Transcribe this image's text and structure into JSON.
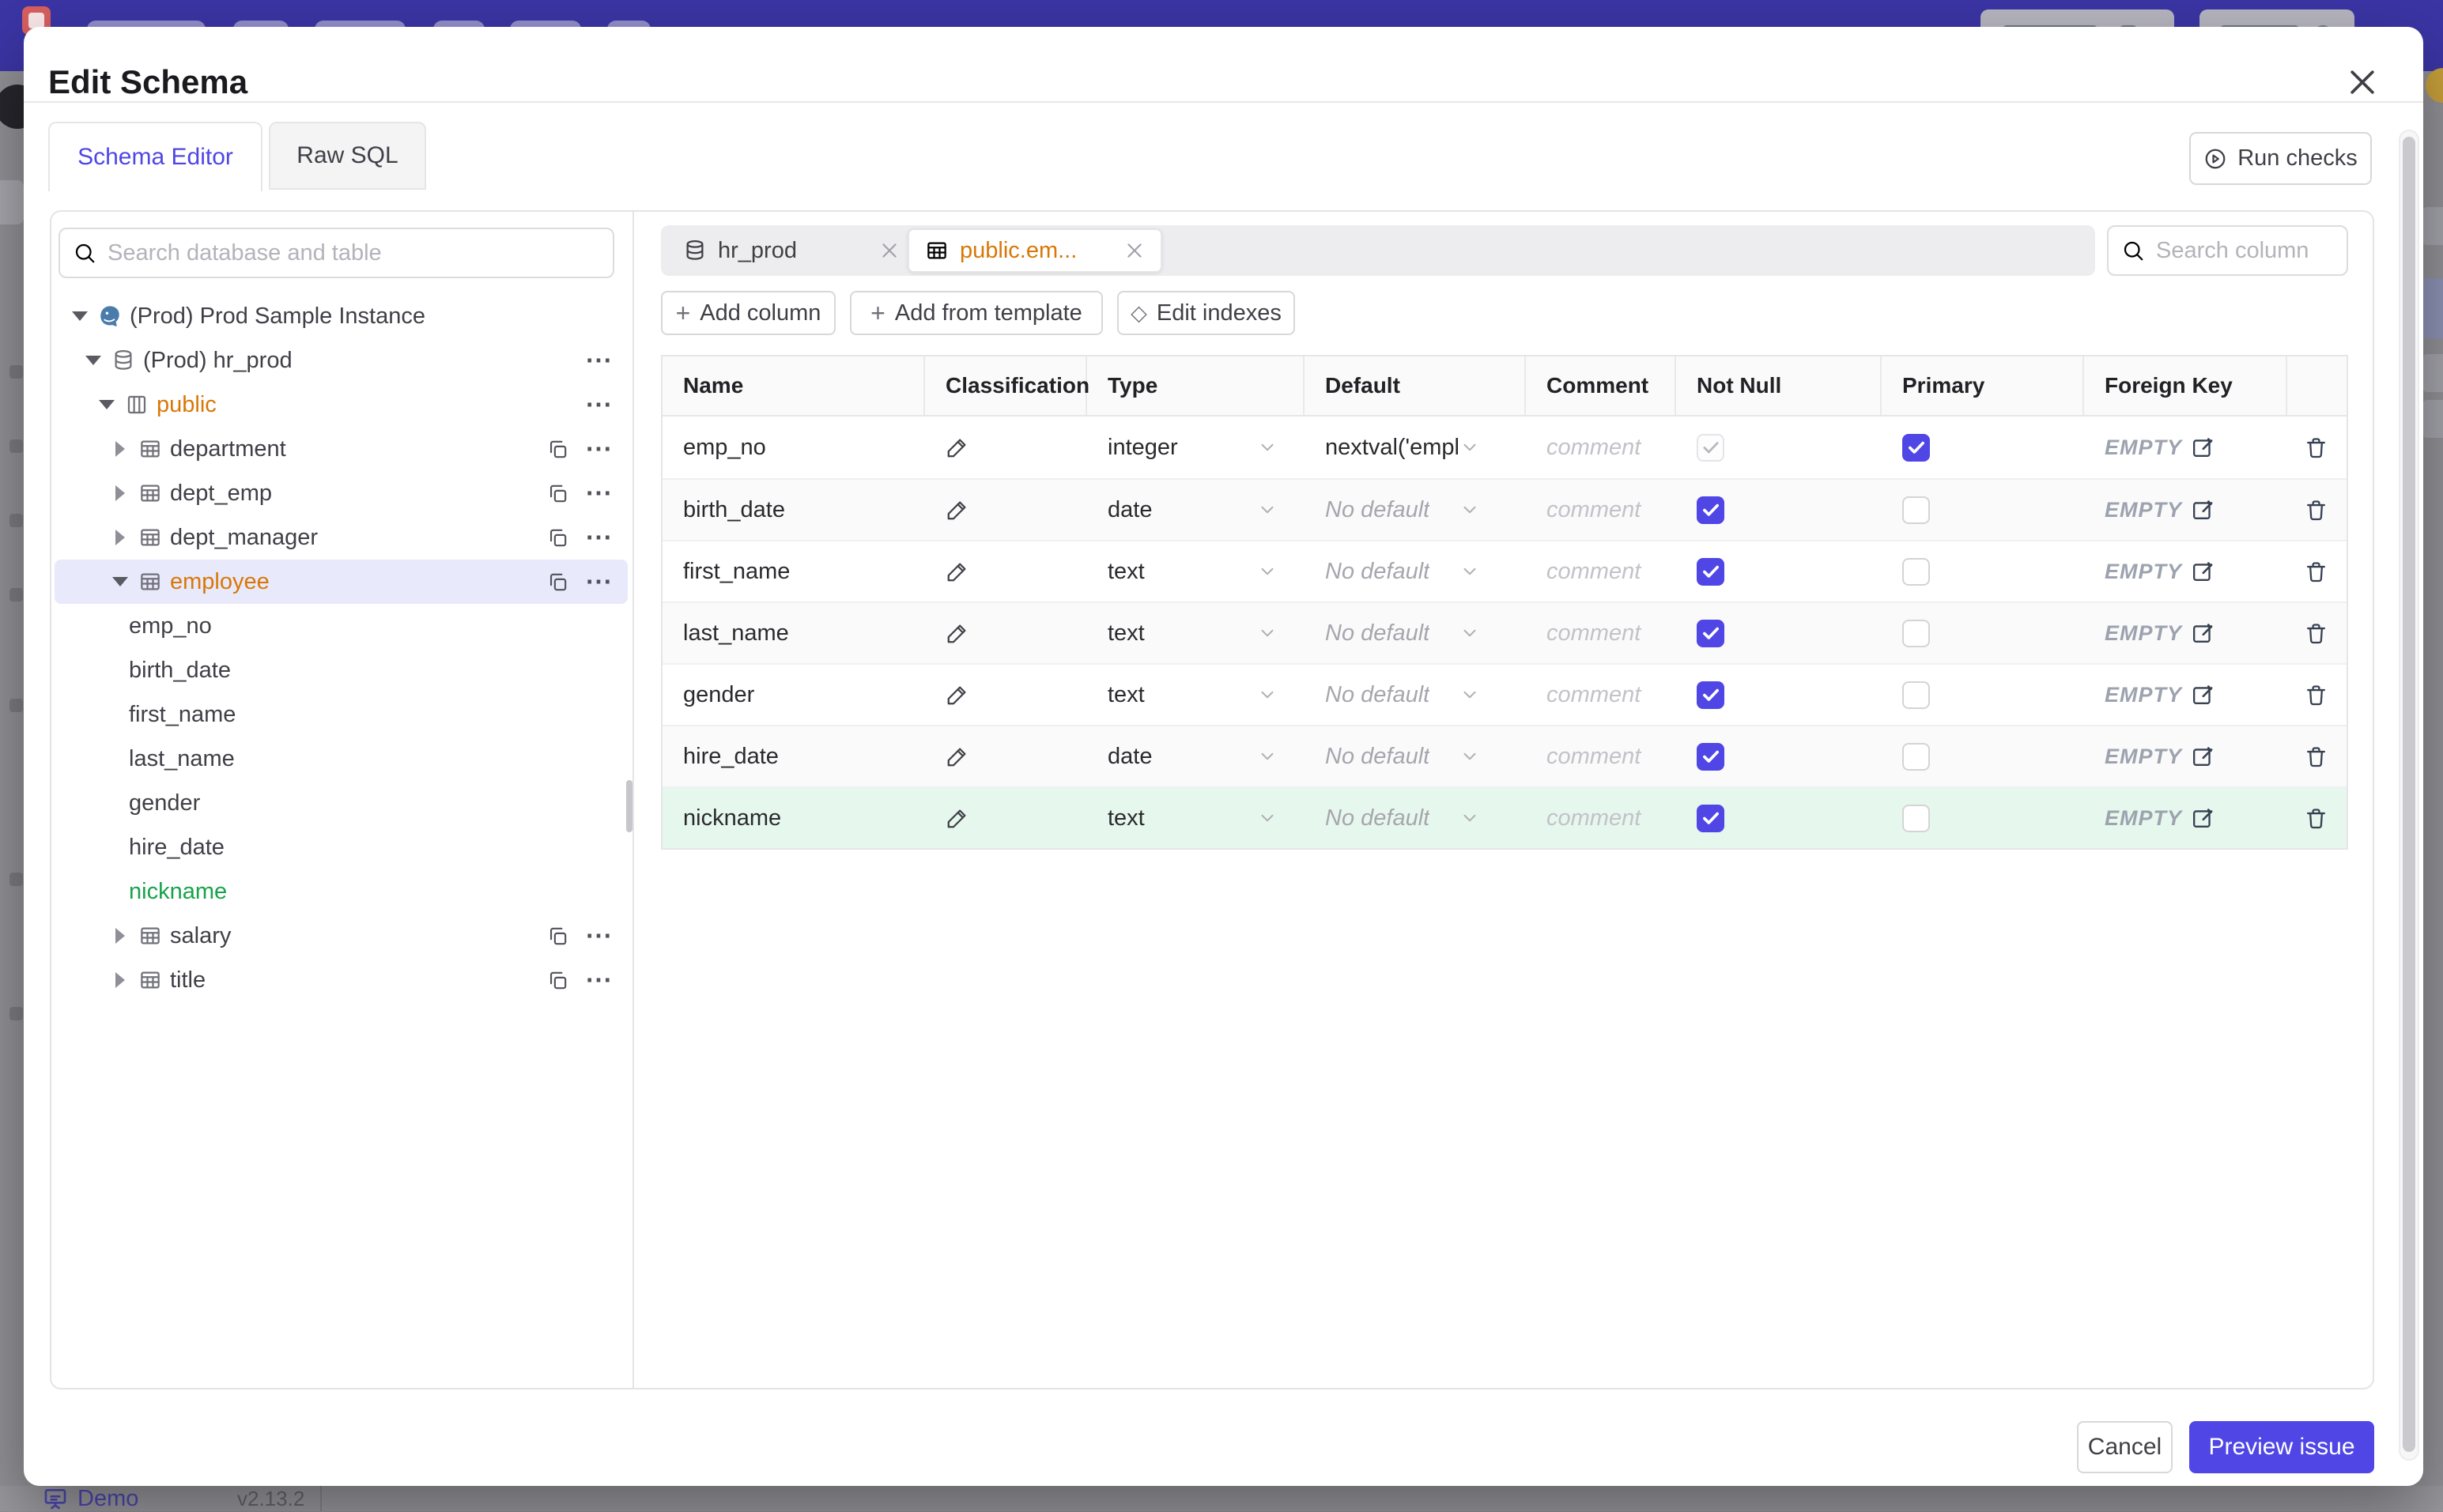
{
  "backdrop": {
    "bottom_bar": {
      "demo_label": "Demo",
      "version": "v2.13.2"
    }
  },
  "modal": {
    "title": "Edit Schema",
    "header_tabs": [
      {
        "label": "Schema Editor",
        "active": true
      },
      {
        "label": "Raw SQL",
        "active": false
      }
    ],
    "run_checks_label": "Run checks",
    "sidebar": {
      "search_placeholder": "Search database and table",
      "tree": [
        {
          "level": 0,
          "expand": "down",
          "icon": "postgres",
          "label": "(Prod) Prod Sample Instance",
          "color": "",
          "selected": false,
          "actions": []
        },
        {
          "level": 1,
          "expand": "down",
          "icon": "database",
          "label": "(Prod) hr_prod",
          "color": "",
          "selected": false,
          "actions": [
            "more"
          ]
        },
        {
          "level": 2,
          "expand": "down",
          "icon": "schema",
          "label": "public",
          "color": "amber",
          "selected": false,
          "actions": [
            "more"
          ]
        },
        {
          "level": 3,
          "expand": "right",
          "icon": "table",
          "label": "department",
          "color": "",
          "selected": false,
          "actions": [
            "copy",
            "more"
          ]
        },
        {
          "level": 3,
          "expand": "right",
          "icon": "table",
          "label": "dept_emp",
          "color": "",
          "selected": false,
          "actions": [
            "copy",
            "more"
          ]
        },
        {
          "level": 3,
          "expand": "right",
          "icon": "table",
          "label": "dept_manager",
          "color": "",
          "selected": false,
          "actions": [
            "copy",
            "more"
          ]
        },
        {
          "level": 3,
          "expand": "down",
          "icon": "table",
          "label": "employee",
          "color": "amber",
          "selected": true,
          "actions": [
            "copy",
            "more"
          ]
        },
        {
          "level": 4,
          "expand": "",
          "icon": "",
          "label": "emp_no",
          "color": "",
          "selected": false,
          "actions": []
        },
        {
          "level": 4,
          "expand": "",
          "icon": "",
          "label": "birth_date",
          "color": "",
          "selected": false,
          "actions": []
        },
        {
          "level": 4,
          "expand": "",
          "icon": "",
          "label": "first_name",
          "color": "",
          "selected": false,
          "actions": []
        },
        {
          "level": 4,
          "expand": "",
          "icon": "",
          "label": "last_name",
          "color": "",
          "selected": false,
          "actions": []
        },
        {
          "level": 4,
          "expand": "",
          "icon": "",
          "label": "gender",
          "color": "",
          "selected": false,
          "actions": []
        },
        {
          "level": 4,
          "expand": "",
          "icon": "",
          "label": "hire_date",
          "color": "",
          "selected": false,
          "actions": []
        },
        {
          "level": 4,
          "expand": "",
          "icon": "",
          "label": "nickname",
          "color": "green",
          "selected": false,
          "actions": []
        },
        {
          "level": 3,
          "expand": "right",
          "icon": "table",
          "label": "salary",
          "color": "",
          "selected": false,
          "actions": [
            "copy",
            "more"
          ]
        },
        {
          "level": 3,
          "expand": "right",
          "icon": "table",
          "label": "title",
          "color": "",
          "selected": false,
          "actions": [
            "copy",
            "more"
          ]
        }
      ]
    },
    "editor": {
      "tabs": [
        {
          "label": "hr_prod",
          "icon": "database",
          "active": false
        },
        {
          "label": "public.em...",
          "icon": "table",
          "active": true
        }
      ],
      "search_placeholder": "Search column",
      "toolbar": [
        {
          "label": "Add column",
          "icon": "plus"
        },
        {
          "label": "Add from template",
          "icon": "plus"
        },
        {
          "label": "Edit indexes",
          "icon": "diamond"
        }
      ],
      "columns_table": {
        "headers": [
          "Name",
          "Classification",
          "Type",
          "Default",
          "Comment",
          "Not Null",
          "Primary",
          "Foreign Key",
          ""
        ],
        "comment_placeholder": "comment",
        "fk_placeholder": "EMPTY",
        "rows": [
          {
            "name": "emp_no",
            "type": "integer",
            "default": "nextval('employ",
            "default_is_placeholder": false,
            "not_null": "checked_disabled",
            "primary": "checked",
            "zebra": "white"
          },
          {
            "name": "birth_date",
            "type": "date",
            "default": "No default",
            "default_is_placeholder": true,
            "not_null": "checked",
            "primary": "unchecked",
            "zebra": "alt"
          },
          {
            "name": "first_name",
            "type": "text",
            "default": "No default",
            "default_is_placeholder": true,
            "not_null": "checked",
            "primary": "unchecked",
            "zebra": "white"
          },
          {
            "name": "last_name",
            "type": "text",
            "default": "No default",
            "default_is_placeholder": true,
            "not_null": "checked",
            "primary": "unchecked",
            "zebra": "alt"
          },
          {
            "name": "gender",
            "type": "text",
            "default": "No default",
            "default_is_placeholder": true,
            "not_null": "checked",
            "primary": "unchecked",
            "zebra": "white"
          },
          {
            "name": "hire_date",
            "type": "date",
            "default": "No default",
            "default_is_placeholder": true,
            "not_null": "checked",
            "primary": "unchecked",
            "zebra": "alt"
          },
          {
            "name": "nickname",
            "type": "text",
            "default": "No default",
            "default_is_placeholder": true,
            "not_null": "checked",
            "primary": "unchecked",
            "zebra": "green"
          }
        ]
      }
    },
    "footer": {
      "cancel_label": "Cancel",
      "submit_label": "Preview issue"
    }
  },
  "colors": {
    "accent": "#4f46e5",
    "amber": "#d97706",
    "green": "#16a34a",
    "added_row_bg": "#e6f7ed",
    "selected_tree_bg": "#e8e9fb",
    "topbar": "#3b35a5"
  },
  "icons": [
    "search-icon",
    "close-icon",
    "caret-down-icon",
    "caret-right-icon",
    "postgres-icon",
    "database-icon",
    "schema-icon",
    "table-icon",
    "copy-icon",
    "more-icon",
    "chevron-down-icon",
    "pencil-icon",
    "plus-icon",
    "diamond-icon",
    "play-circle-icon",
    "edit-square-icon",
    "trash-icon",
    "check-icon",
    "presentation-icon"
  ]
}
